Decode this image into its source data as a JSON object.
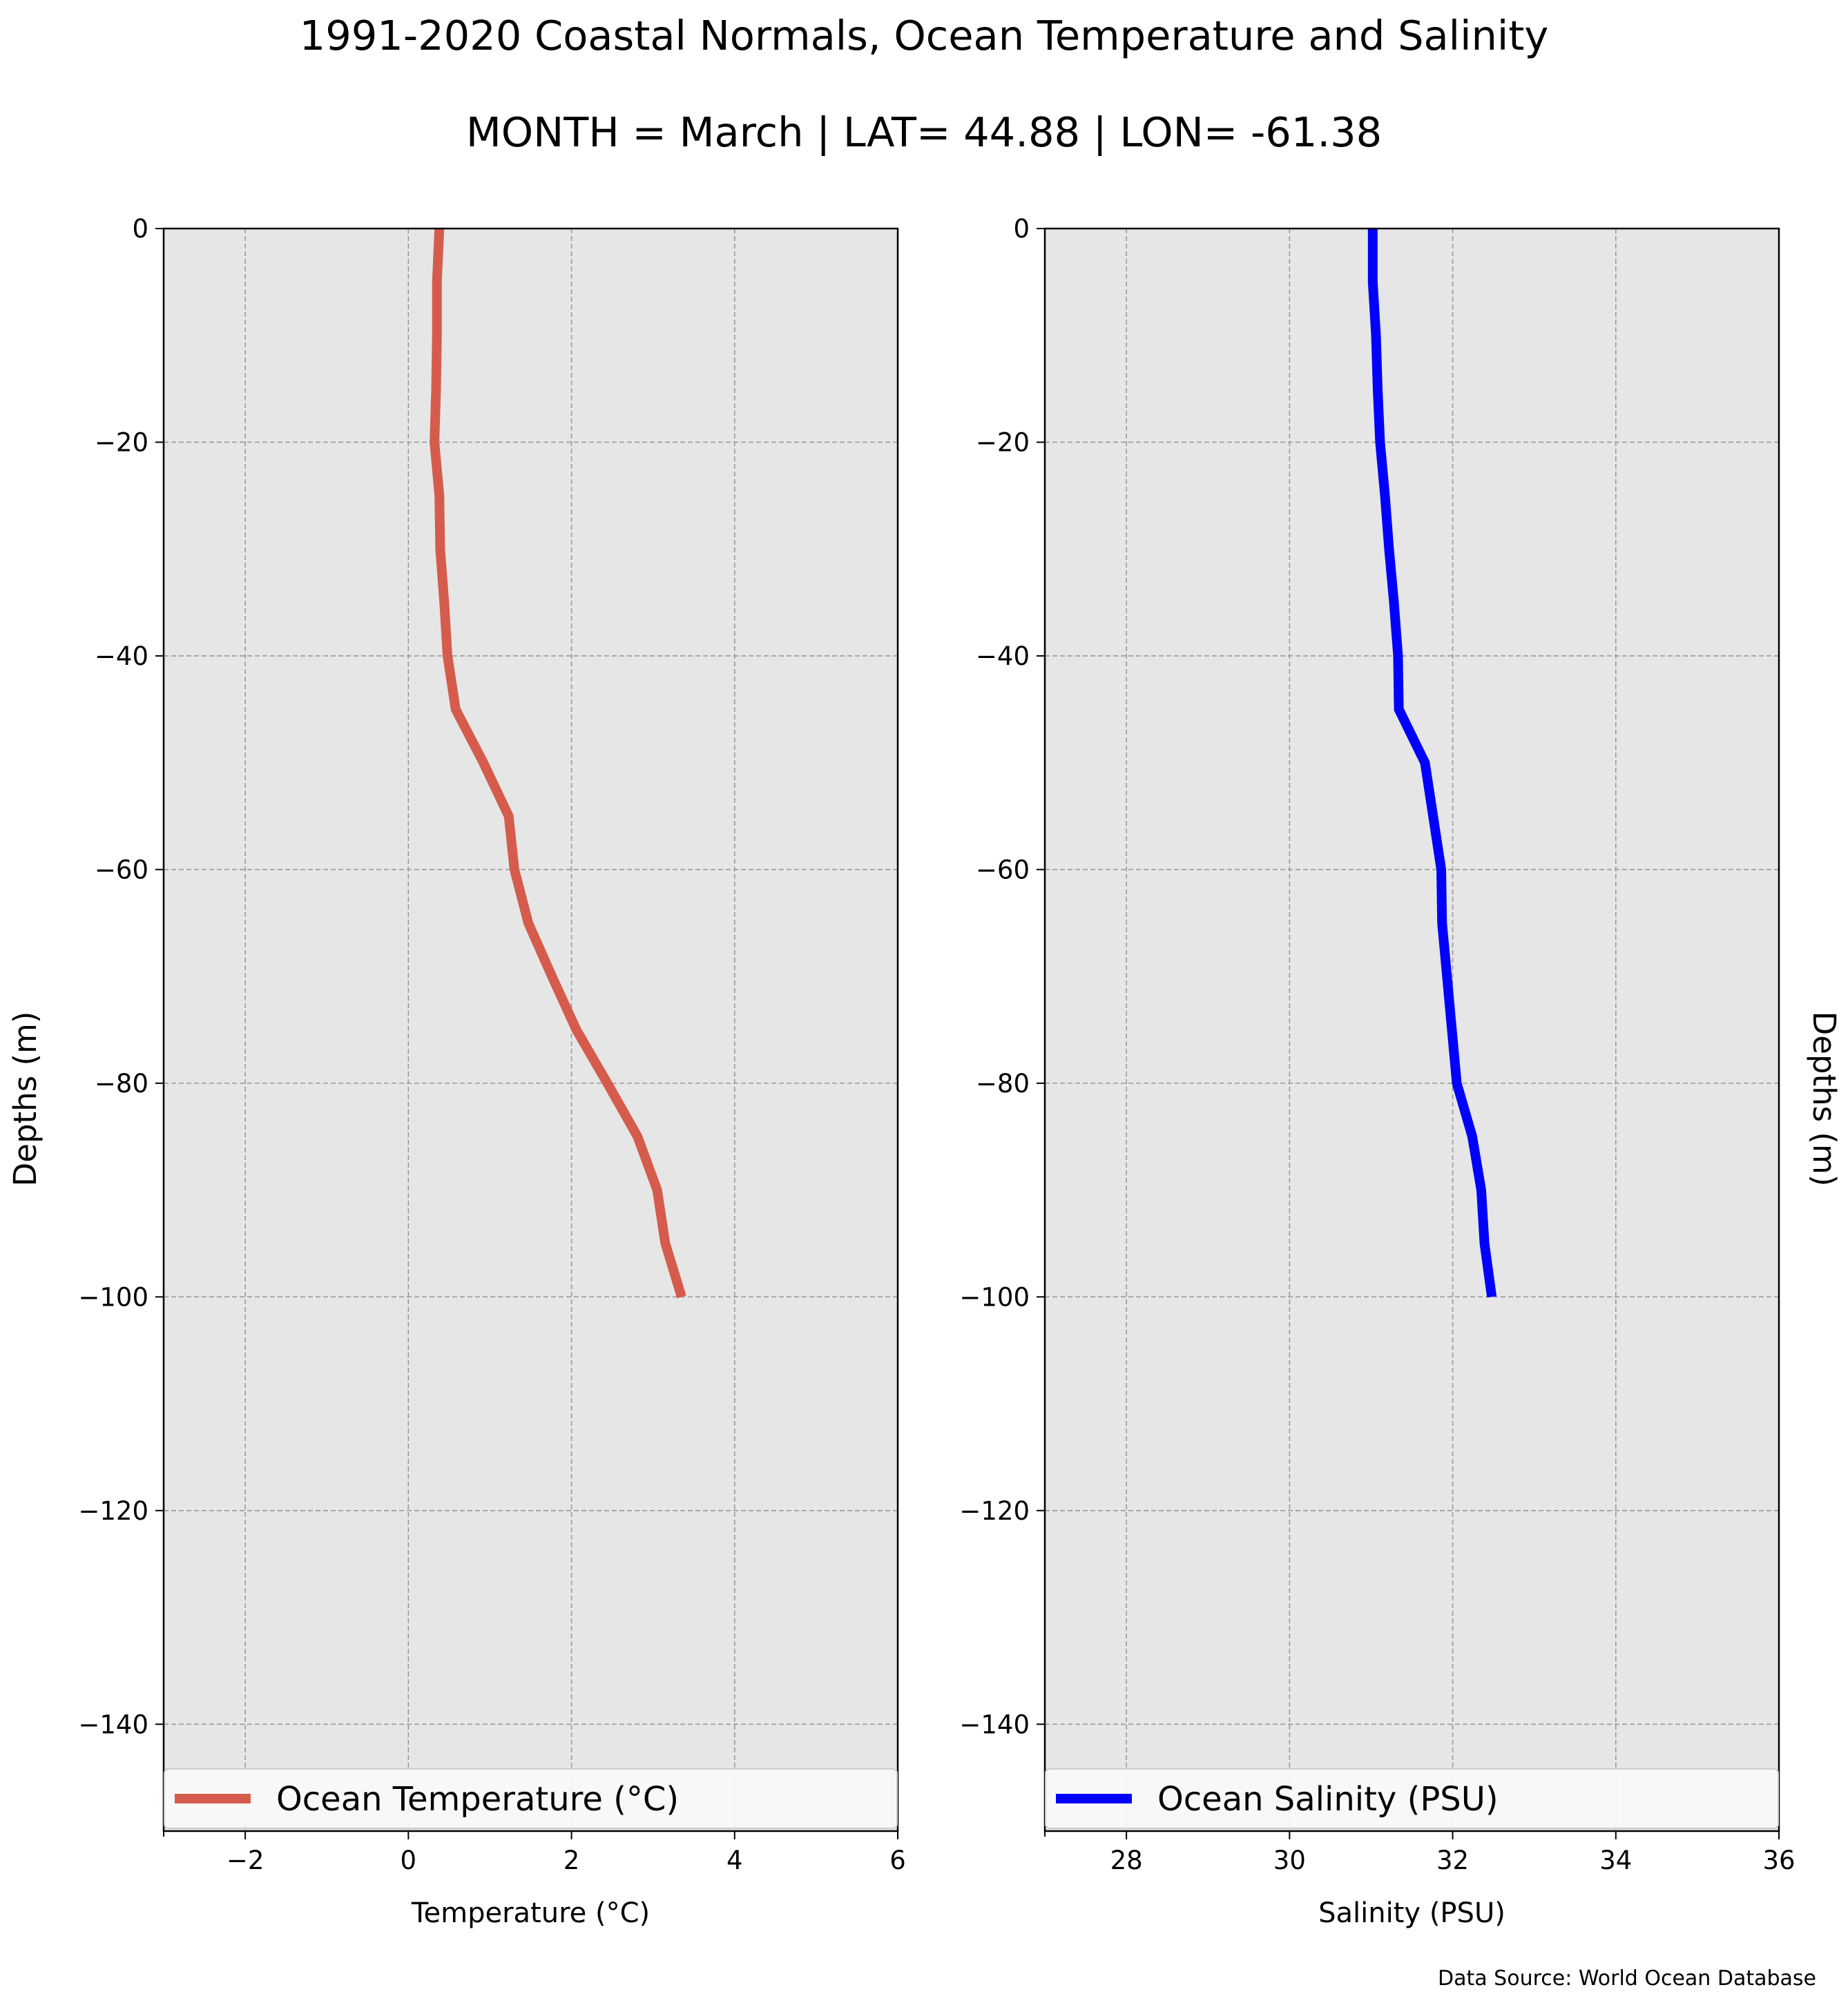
{
  "figure": {
    "title": "1991-2020 Coastal Normals, Ocean Temperature and Salinity",
    "subtitle": "MONTH = March | LAT= 44.88 | LON= -61.38",
    "source": "Data Source: World Ocean Database",
    "background": "#ffffff",
    "plot_background": "#e6e6e6",
    "grid_color": "#999999"
  },
  "chart_data": [
    {
      "type": "line",
      "xlabel": "Temperature ($^\\circ$C)",
      "xlabel_display": "Temperature (°C)",
      "ylabel": "Depths (m)",
      "ylabel_side": "left",
      "xlim": [
        -3,
        6
      ],
      "ylim": [
        -150,
        0
      ],
      "xticks": [
        -2,
        0,
        2,
        4,
        6
      ],
      "xtick_labels": [
        "−2",
        "0",
        "2",
        "4",
        "6"
      ],
      "yticks": [
        0,
        -20,
        -40,
        -60,
        -80,
        -100,
        -120,
        -140
      ],
      "ytick_labels": [
        "0",
        "−20",
        "−40",
        "−60",
        "−80",
        "−100",
        "−120",
        "−140"
      ],
      "grid": true,
      "legend_position": "bottom",
      "series": [
        {
          "name": "Ocean Temperature ($^\\circ$C)",
          "name_display": "Ocean Temperature (°C)",
          "color": "#d55c4c",
          "depths": [
            0,
            -5,
            -10,
            -15,
            -20,
            -25,
            -30,
            -35,
            -40,
            -45,
            -50,
            -55,
            -60,
            -65,
            -70,
            -75,
            -80,
            -85,
            -90,
            -95,
            -100
          ],
          "values": [
            0.38,
            0.35,
            0.35,
            0.34,
            0.32,
            0.38,
            0.39,
            0.44,
            0.48,
            0.58,
            0.92,
            1.23,
            1.3,
            1.47,
            1.76,
            2.06,
            2.44,
            2.81,
            3.05,
            3.15,
            3.35
          ]
        }
      ]
    },
    {
      "type": "line",
      "xlabel": "Salinity (PSU)",
      "ylabel": "Depths (m)",
      "ylabel_side": "right",
      "xlim": [
        27,
        36
      ],
      "ylim": [
        -150,
        0
      ],
      "xticks": [
        28,
        30,
        32,
        34,
        36
      ],
      "xtick_labels": [
        "28",
        "30",
        "32",
        "34",
        "36"
      ],
      "yticks": [
        0,
        -20,
        -40,
        -60,
        -80,
        -100,
        -120,
        -140
      ],
      "ytick_labels": [
        "0",
        "−20",
        "−40",
        "−60",
        "−80",
        "−100",
        "−120",
        "−140"
      ],
      "grid": true,
      "legend_position": "bottom",
      "series": [
        {
          "name": "Ocean Salinity (PSU)",
          "color": "#0000ff",
          "depths": [
            0,
            -5,
            -10,
            -15,
            -20,
            -25,
            -30,
            -35,
            -40,
            -45,
            -50,
            -55,
            -60,
            -65,
            -70,
            -75,
            -80,
            -85,
            -90,
            -95,
            -100
          ],
          "values": [
            31.02,
            31.02,
            31.06,
            31.08,
            31.11,
            31.17,
            31.22,
            31.28,
            31.33,
            31.34,
            31.66,
            31.76,
            31.86,
            31.87,
            31.93,
            31.99,
            32.05,
            32.24,
            32.35,
            32.39,
            32.48
          ]
        }
      ]
    }
  ]
}
